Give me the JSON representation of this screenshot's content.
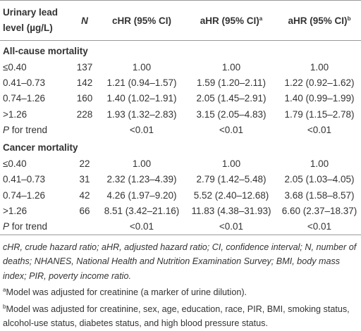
{
  "table": {
    "header": [
      {
        "text": "Urinary lead level (µg/L)"
      },
      {
        "text": "N"
      },
      {
        "text": "cHR (95% CI)"
      },
      {
        "text": "aHR (95% CI)",
        "sup": "a"
      },
      {
        "text": "aHR (95% CI)",
        "sup": "b"
      }
    ],
    "sections": [
      {
        "title": "All-cause mortality",
        "rows": [
          [
            "≤0.40",
            "137",
            "1.00",
            "1.00",
            "1.00"
          ],
          [
            "0.41–0.73",
            "142",
            "1.21 (0.94–1.57)",
            "1.59 (1.20–2.11)",
            "1.22 (0.92–1.62)"
          ],
          [
            "0.74–1.26",
            "160",
            "1.40 (1.02–1.91)",
            "2.05 (1.45–2.91)",
            "1.40 (0.99–1.99)"
          ],
          [
            ">1.26",
            "228",
            "1.93 (1.32–2.83)",
            "3.15 (2.05–4.83)",
            "1.79 (1.15–2.78)"
          ]
        ],
        "trend": {
          "italic": "P",
          "label": " for trend",
          "values": [
            "<0.01",
            "<0.01",
            "<0.01"
          ]
        }
      },
      {
        "title": "Cancer mortality",
        "rows": [
          [
            "≤0.40",
            "22",
            "1.00",
            "1.00",
            "1.00"
          ],
          [
            "0.41–0.73",
            "31",
            "2.32 (1.23–4.39)",
            "2.79 (1.42–5.48)",
            "2.05 (1.03–4.05)"
          ],
          [
            "0.74–1.26",
            "42",
            "4.26 (1.97–9.20)",
            "5.52 (2.40–12.68)",
            "3.68 (1.58–8.57)"
          ],
          [
            ">1.26",
            "66",
            "8.51 (3.42–21.16)",
            "11.83 (4.38–31.93)",
            "6.60 (2.37–18.37)"
          ]
        ],
        "trend": {
          "italic": "P",
          "label": " for trend",
          "values": [
            "<0.01",
            "<0.01",
            "<0.01"
          ]
        }
      }
    ]
  },
  "footnotes": {
    "abbreviations": "cHR, crude hazard ratio; aHR, adjusted hazard ratio; CI, confidence interval; N, number of deaths; NHANES, National Health and Nutrition Examination Survey; BMI, body mass index; PIR, poverty income ratio.",
    "notes": [
      {
        "mark": "a",
        "text": "Model was adjusted for creatinine (a marker of urine dilution)."
      },
      {
        "mark": "b",
        "text": "Model was adjusted for creatinine, sex, age, education, race, PIR, BMI, smoking status, alcohol-use status, diabetes status, and high blood pressure status."
      }
    ]
  }
}
